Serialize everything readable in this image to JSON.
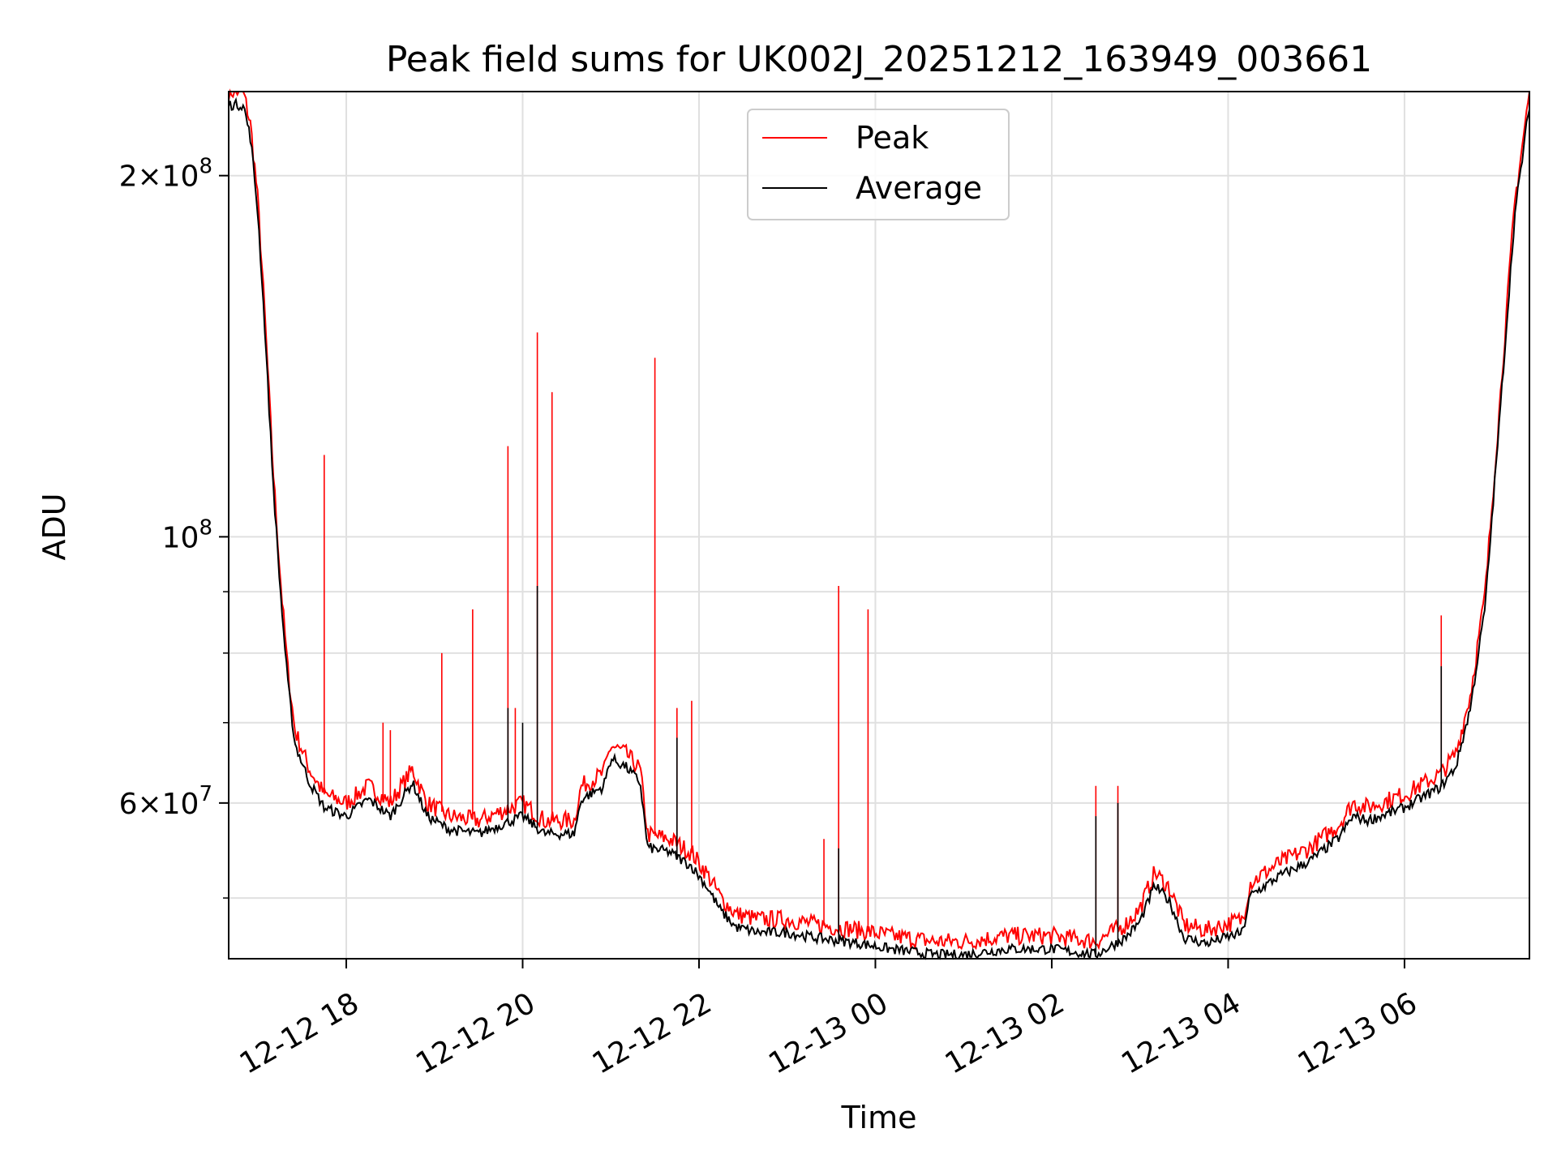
{
  "chart_data": {
    "type": "line",
    "title": "Peak field sums for UK002J_20251212_163949_003661",
    "xlabel": "Time",
    "ylabel": "ADU",
    "y_scale": "log",
    "ylim": [
      44500000,
      235000000
    ],
    "xlim": [
      "2025-12-12 16:40",
      "2025-12-13 07:25"
    ],
    "grid": true,
    "legend_position": "upper-center",
    "x_ticks": [
      {
        "value": "2025-12-12 18:00",
        "label": "12-12 18"
      },
      {
        "value": "2025-12-12 20:00",
        "label": "12-12 20"
      },
      {
        "value": "2025-12-12 22:00",
        "label": "12-12 22"
      },
      {
        "value": "2025-12-13 00:00",
        "label": "12-13 00"
      },
      {
        "value": "2025-12-13 02:00",
        "label": "12-13 02"
      },
      {
        "value": "2025-12-13 04:00",
        "label": "12-13 04"
      },
      {
        "value": "2025-12-13 06:00",
        "label": "12-13 06"
      }
    ],
    "y_ticks_major": [
      {
        "value": 100000000,
        "base": "10",
        "exp": "8",
        "coef": ""
      },
      {
        "value": 200000000,
        "base": "10",
        "exp": "8",
        "coef": "2"
      },
      {
        "value": 60000000,
        "base": "10",
        "exp": "7",
        "coef": "6"
      }
    ],
    "y_ticks_minor": [
      50000000,
      70000000,
      80000000,
      90000000,
      300000000
    ],
    "series": [
      {
        "name": "Peak",
        "color": "#ff0000",
        "baseline": [
          [
            "2025-12-12 16:40",
            235000000
          ],
          [
            "2025-12-12 16:50",
            235000000
          ],
          [
            "2025-12-12 16:55",
            220000000
          ],
          [
            "2025-12-12 17:00",
            190000000
          ],
          [
            "2025-12-12 17:05",
            150000000
          ],
          [
            "2025-12-12 17:10",
            115000000
          ],
          [
            "2025-12-12 17:15",
            93000000
          ],
          [
            "2025-12-12 17:20",
            78000000
          ],
          [
            "2025-12-12 17:25",
            69000000
          ],
          [
            "2025-12-12 17:35",
            64000000
          ],
          [
            "2025-12-12 17:45",
            61000000
          ],
          [
            "2025-12-12 18:00",
            60000000
          ],
          [
            "2025-12-12 18:15",
            62000000
          ],
          [
            "2025-12-12 18:30",
            60000000
          ],
          [
            "2025-12-12 18:45",
            64000000
          ],
          [
            "2025-12-12 18:55",
            60000000
          ],
          [
            "2025-12-12 19:10",
            58500000
          ],
          [
            "2025-12-12 19:30",
            58000000
          ],
          [
            "2025-12-12 19:45",
            59000000
          ],
          [
            "2025-12-12 20:00",
            60000000
          ],
          [
            "2025-12-12 20:15",
            58000000
          ],
          [
            "2025-12-12 20:35",
            58000000
          ],
          [
            "2025-12-12 20:40",
            62000000
          ],
          [
            "2025-12-12 20:55",
            63500000
          ],
          [
            "2025-12-12 21:00",
            67000000
          ],
          [
            "2025-12-12 21:10",
            66000000
          ],
          [
            "2025-12-12 21:20",
            64000000
          ],
          [
            "2025-12-12 21:25",
            56500000
          ],
          [
            "2025-12-12 21:40",
            56000000
          ],
          [
            "2025-12-12 21:55",
            54500000
          ],
          [
            "2025-12-12 22:05",
            52500000
          ],
          [
            "2025-12-12 22:15",
            50000000
          ],
          [
            "2025-12-12 22:25",
            48500000
          ],
          [
            "2025-12-12 22:40",
            48000000
          ],
          [
            "2025-12-12 23:00",
            48000000
          ],
          [
            "2025-12-12 23:20",
            47500000
          ],
          [
            "2025-12-12 23:50",
            47000000
          ],
          [
            "2025-12-13 00:10",
            46500000
          ],
          [
            "2025-12-13 00:40",
            46000000
          ],
          [
            "2025-12-13 01:00",
            46000000
          ],
          [
            "2025-12-13 01:30",
            46500000
          ],
          [
            "2025-12-13 02:00",
            46500000
          ],
          [
            "2025-12-13 02:30",
            46000000
          ],
          [
            "2025-12-13 02:50",
            47500000
          ],
          [
            "2025-12-13 03:00",
            49000000
          ],
          [
            "2025-12-13 03:10",
            52500000
          ],
          [
            "2025-12-13 03:20",
            51000000
          ],
          [
            "2025-12-13 03:30",
            47500000
          ],
          [
            "2025-12-13 03:45",
            47000000
          ],
          [
            "2025-12-13 04:10",
            48000000
          ],
          [
            "2025-12-13 04:15",
            51500000
          ],
          [
            "2025-12-13 04:35",
            53500000
          ],
          [
            "2025-12-13 04:55",
            55000000
          ],
          [
            "2025-12-13 05:15",
            57500000
          ],
          [
            "2025-12-13 05:25",
            60000000
          ],
          [
            "2025-12-13 05:35",
            59500000
          ],
          [
            "2025-12-13 06:00",
            61000000
          ],
          [
            "2025-12-13 06:25",
            63500000
          ],
          [
            "2025-12-13 06:35",
            66000000
          ],
          [
            "2025-12-13 06:45",
            74000000
          ],
          [
            "2025-12-13 06:55",
            90000000
          ],
          [
            "2025-12-13 07:05",
            130000000
          ],
          [
            "2025-12-13 07:15",
            190000000
          ],
          [
            "2025-12-13 07:25",
            235000000
          ]
        ],
        "spikes": [
          [
            "2025-12-12 17:45",
            117000000
          ],
          [
            "2025-12-12 18:25",
            70000000
          ],
          [
            "2025-12-12 18:30",
            69000000
          ],
          [
            "2025-12-12 19:05",
            80000000
          ],
          [
            "2025-12-12 19:26",
            87000000
          ],
          [
            "2025-12-12 19:55",
            72000000
          ],
          [
            "2025-12-12 19:50",
            119000000
          ],
          [
            "2025-12-12 20:10",
            148000000
          ],
          [
            "2025-12-12 20:20",
            132000000
          ],
          [
            "2025-12-12 21:30",
            141000000
          ],
          [
            "2025-12-12 21:45",
            72000000
          ],
          [
            "2025-12-12 21:55",
            73000000
          ],
          [
            "2025-12-12 23:35",
            91000000
          ],
          [
            "2025-12-12 23:55",
            87000000
          ],
          [
            "2025-12-12 23:25",
            56000000
          ],
          [
            "2025-12-13 02:30",
            62000000
          ],
          [
            "2025-12-13 02:45",
            62000000
          ],
          [
            "2025-12-13 06:25",
            86000000
          ]
        ]
      },
      {
        "name": "Average",
        "color": "#000000",
        "offset_factor": 0.975,
        "spikes": [
          [
            "2025-12-12 20:10",
            91000000
          ],
          [
            "2025-12-12 21:45",
            68000000
          ],
          [
            "2025-12-12 23:35",
            55000000
          ],
          [
            "2025-12-13 02:30",
            58500000
          ],
          [
            "2025-12-13 02:45",
            60000000
          ],
          [
            "2025-12-13 06:25",
            78000000
          ],
          [
            "2025-12-12 20:00",
            70000000
          ],
          [
            "2025-12-12 19:50",
            72000000
          ]
        ]
      }
    ]
  }
}
